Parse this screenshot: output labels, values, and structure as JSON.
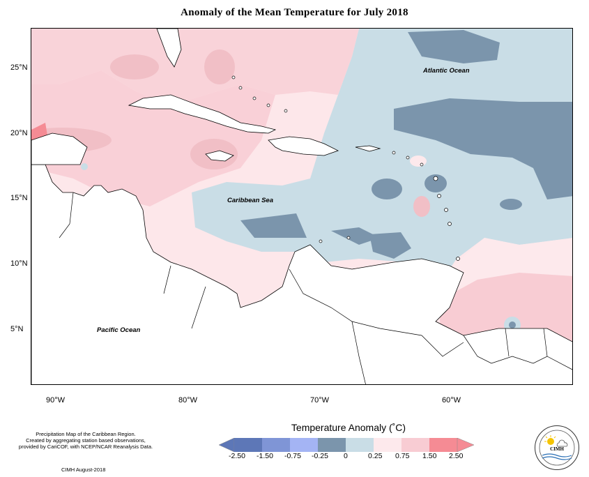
{
  "title": "Anomaly of the Mean Temperature for July 2018",
  "lat_ticks": [
    "25°N",
    "20°N",
    "15°N",
    "10°N",
    "5°N"
  ],
  "lon_ticks": [
    "90°W",
    "80°W",
    "70°W",
    "60°W"
  ],
  "labels": {
    "atlantic": "Atlantic Ocean",
    "caribbean": "Caribbean Sea",
    "pacific": "Pacific Ocean"
  },
  "footer": {
    "line1": "Precipitation Map of the Caribbean Region.",
    "line2": "Created by aggregating station based observations,",
    "line3": "provided by CariCOF, with NCEP/NCAR Reanalysis Data.",
    "credit": "CIMH August-2018"
  },
  "colorbar": {
    "title": "Temperature Anomaly (˚C)",
    "labels": [
      "-2.50",
      "-1.50",
      "-0.75",
      "-0.25",
      "0",
      "0.25",
      "0.75",
      "1.50",
      "2.50"
    ],
    "colors": [
      "#5d77b7",
      "#7f95d6",
      "#a4b4f4",
      "#7b95ac",
      "#c9dde6",
      "#fde9ec",
      "#f8ccd3",
      "#f1aeb9",
      "#f58b94"
    ]
  },
  "logo": {
    "abbr": "CIMH",
    "ring_text": "Caribbean Institute for Meteorology and Hydrology"
  }
}
